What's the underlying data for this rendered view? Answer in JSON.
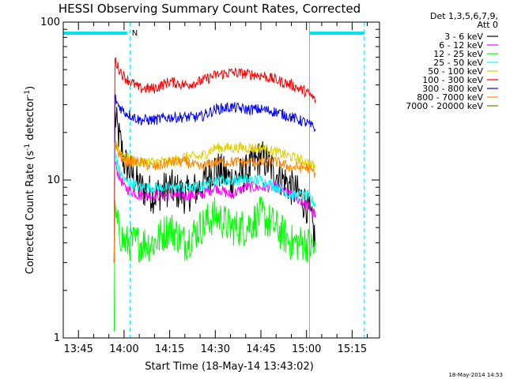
{
  "chart_data": {
    "type": "line",
    "title": "HESSI Observing Summary Count Rates, Corrected",
    "xlabel": "Start Time (18-May-14 13:43:02)",
    "ylabel_main": "Corrected Count Rate (s",
    "ylabel_sup1": "-1",
    "ylabel_mid": " detector",
    "ylabel_sup2": "-1",
    "ylabel_end": ")",
    "timestamp": "18-May-2014 14:53",
    "y_scale": "log",
    "ylim": [
      1,
      100
    ],
    "y_ticks": [
      {
        "value": 1,
        "label": "1"
      },
      {
        "value": 10,
        "label": "10"
      },
      {
        "value": 100,
        "label": "100"
      }
    ],
    "xlim": [
      "13:40",
      "15:24"
    ],
    "x_ticks": [
      {
        "time": "13:45",
        "label": "13:45"
      },
      {
        "time": "14:00",
        "label": "14:00"
      },
      {
        "time": "14:15",
        "label": "14:15"
      },
      {
        "time": "14:30",
        "label": "14:30"
      },
      {
        "time": "14:45",
        "label": "14:45"
      },
      {
        "time": "15:00",
        "label": "15:00"
      },
      {
        "time": "15:15",
        "label": "15:15"
      }
    ],
    "legend_header": [
      "Det 1,3,5,6,7,9,",
      "Att 0"
    ],
    "legend_placement": "right",
    "markers": {
      "solid_lines": [
        "13:40",
        "15:01"
      ],
      "dashed_lines": [
        "14:02",
        "15:19"
      ],
      "night_bars": [
        [
          "13:40",
          "14:01"
        ],
        [
          "15:01",
          "15:19"
        ]
      ],
      "night_label": "N",
      "color": "#00e5ee"
    },
    "series": [
      {
        "name": "3 - 6 keV",
        "color": "#000000",
        "x": [
          "13:57",
          "13:58",
          "14:00",
          "14:05",
          "14:10",
          "14:15",
          "14:20",
          "14:25",
          "14:30",
          "14:35",
          "14:40",
          "14:45",
          "14:50",
          "14:55",
          "15:00",
          "15:03"
        ],
        "y": [
          25,
          20,
          13,
          9,
          8,
          9,
          8,
          9,
          12,
          10,
          11,
          14,
          11,
          9,
          7,
          4
        ]
      },
      {
        "name": "6 - 12 keV",
        "color": "#ff00ff",
        "x": [
          "13:57",
          "13:58",
          "14:00",
          "14:05",
          "14:10",
          "14:15",
          "14:20",
          "14:25",
          "14:30",
          "14:35",
          "14:40",
          "14:45",
          "14:50",
          "14:55",
          "15:00",
          "15:03"
        ],
        "y": [
          13,
          11,
          9,
          8,
          8,
          8,
          8,
          8,
          9,
          8,
          9,
          9,
          9,
          8,
          7,
          6
        ]
      },
      {
        "name": "12 - 25 keV",
        "color": "#00ff00",
        "x": [
          "13:57",
          "13:58",
          "14:00",
          "14:05",
          "14:10",
          "14:15",
          "14:20",
          "14:25",
          "14:30",
          "14:35",
          "14:40",
          "14:45",
          "14:50",
          "14:55",
          "15:00",
          "15:03"
        ],
        "y": [
          6,
          5,
          4,
          4,
          4,
          5,
          4,
          5,
          6,
          5,
          5,
          6,
          5,
          4,
          4,
          3.5
        ]
      },
      {
        "name": "25 - 50 keV",
        "color": "#00ffff",
        "x": [
          "13:57",
          "13:58",
          "14:00",
          "14:05",
          "14:10",
          "14:15",
          "14:20",
          "14:25",
          "14:30",
          "14:35",
          "14:40",
          "14:45",
          "14:50",
          "14:55",
          "15:00",
          "15:03"
        ],
        "y": [
          15,
          12,
          10,
          9,
          9,
          9,
          9,
          9,
          10,
          10,
          10,
          10,
          9,
          8,
          8,
          7
        ]
      },
      {
        "name": "50 - 100 keV",
        "color": "#e0d000",
        "x": [
          "13:57",
          "13:58",
          "14:00",
          "14:05",
          "14:10",
          "14:15",
          "14:20",
          "14:25",
          "14:30",
          "14:35",
          "14:40",
          "14:45",
          "14:50",
          "14:55",
          "15:00",
          "15:03"
        ],
        "y": [
          18,
          16,
          14,
          13,
          13,
          13,
          14,
          14,
          16,
          16,
          16,
          16,
          15,
          14,
          13,
          12
        ]
      },
      {
        "name": "100 - 300 keV",
        "color": "#ff0000",
        "x": [
          "13:57",
          "13:58",
          "14:00",
          "14:05",
          "14:10",
          "14:15",
          "14:20",
          "14:25",
          "14:30",
          "14:35",
          "14:40",
          "14:45",
          "14:50",
          "14:55",
          "15:00",
          "15:03"
        ],
        "y": [
          58,
          52,
          45,
          38,
          38,
          42,
          40,
          42,
          46,
          48,
          47,
          46,
          43,
          40,
          36,
          32
        ]
      },
      {
        "name": "300 - 800 keV",
        "color": "#0000ff",
        "x": [
          "13:57",
          "13:58",
          "14:00",
          "14:05",
          "14:10",
          "14:15",
          "14:20",
          "14:25",
          "14:30",
          "14:35",
          "14:40",
          "14:45",
          "14:50",
          "14:55",
          "15:00",
          "15:03"
        ],
        "y": [
          33,
          30,
          27,
          24,
          24,
          25,
          25,
          25,
          28,
          29,
          28,
          28,
          27,
          25,
          23,
          21
        ]
      },
      {
        "name": "800 - 7000 keV",
        "color": "#ff8800",
        "x": [
          "13:57",
          "13:58",
          "14:00",
          "14:05",
          "14:10",
          "14:15",
          "14:20",
          "14:25",
          "14:30",
          "14:35",
          "14:40",
          "14:45",
          "14:50",
          "14:55",
          "15:00",
          "15:03"
        ],
        "y": [
          17,
          15,
          13,
          13,
          12,
          13,
          13,
          12,
          13,
          13,
          13,
          13,
          13,
          12,
          12,
          11
        ]
      },
      {
        "name": "7000 - 20000 keV",
        "color": "#8b7000",
        "x": [],
        "y": []
      }
    ]
  }
}
